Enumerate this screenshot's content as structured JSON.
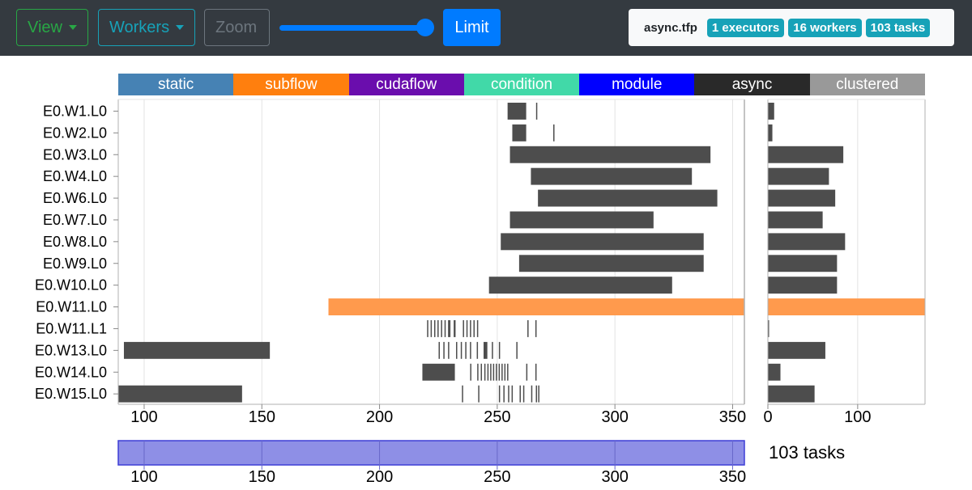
{
  "toolbar": {
    "view_label": "View",
    "workers_label": "Workers",
    "zoom_label": "Zoom",
    "limit_label": "Limit",
    "limit_slider_value": 1.0
  },
  "info": {
    "filename": "async.tfp",
    "badges": [
      "1 executors",
      "16 workers",
      "103 tasks"
    ]
  },
  "legend": [
    {
      "label": "static",
      "color": "#4682b4"
    },
    {
      "label": "subflow",
      "color": "#ff7f0e"
    },
    {
      "label": "cudaflow",
      "color": "#6a0dad"
    },
    {
      "label": "condition",
      "color": "#41d9a8"
    },
    {
      "label": "module",
      "color": "#0000ff"
    },
    {
      "label": "async",
      "color": "#292929"
    },
    {
      "label": "clustered",
      "color": "#999999"
    }
  ],
  "chart_data": [
    {
      "type": "timeline",
      "xlim": [
        89,
        355
      ],
      "xticks": [
        100,
        150,
        200,
        250,
        300,
        350
      ],
      "rows": [
        "E0.W1.L0",
        "E0.W2.L0",
        "E0.W3.L0",
        "E0.W4.L0",
        "E0.W6.L0",
        "E0.W7.L0",
        "E0.W8.L0",
        "E0.W9.L0",
        "E0.W10.L0",
        "E0.W11.L0",
        "E0.W11.L1",
        "E0.W13.L0",
        "E0.W14.L0",
        "E0.W15.L0"
      ],
      "segments": [
        {
          "row": 0,
          "start": 254.4,
          "end": 262.3,
          "type": "async"
        },
        {
          "row": 0,
          "start": 266.5,
          "end": 267.0,
          "type": "async"
        },
        {
          "row": 1,
          "start": 256.4,
          "end": 262.3,
          "type": "async"
        },
        {
          "row": 1,
          "start": 273.8,
          "end": 274.3,
          "type": "async"
        },
        {
          "row": 2,
          "start": 255.4,
          "end": 340.6,
          "type": "async"
        },
        {
          "row": 3,
          "start": 264.3,
          "end": 332.7,
          "type": "async"
        },
        {
          "row": 4,
          "start": 267.3,
          "end": 343.5,
          "type": "async"
        },
        {
          "row": 5,
          "start": 255.4,
          "end": 316.4,
          "type": "async"
        },
        {
          "row": 6,
          "start": 251.5,
          "end": 337.7,
          "type": "async"
        },
        {
          "row": 7,
          "start": 259.3,
          "end": 337.7,
          "type": "async"
        },
        {
          "row": 8,
          "start": 246.5,
          "end": 324.3,
          "type": "async"
        },
        {
          "row": 9,
          "start": 178.3,
          "end": 355.0,
          "type": "subflow"
        },
        {
          "row": 10,
          "start": 220.2,
          "end": 220.7,
          "type": "async"
        },
        {
          "row": 10,
          "start": 221.7,
          "end": 222.2,
          "type": "async"
        },
        {
          "row": 10,
          "start": 223.2,
          "end": 223.7,
          "type": "async"
        },
        {
          "row": 10,
          "start": 224.6,
          "end": 225.1,
          "type": "async"
        },
        {
          "row": 10,
          "start": 226.1,
          "end": 226.6,
          "type": "async"
        },
        {
          "row": 10,
          "start": 227.6,
          "end": 228.1,
          "type": "async"
        },
        {
          "row": 10,
          "start": 229.1,
          "end": 229.6,
          "type": "async"
        },
        {
          "row": 10,
          "start": 231.5,
          "end": 232.3,
          "type": "async"
        },
        {
          "row": 10,
          "start": 235.4,
          "end": 235.9,
          "type": "async"
        },
        {
          "row": 10,
          "start": 236.9,
          "end": 237.4,
          "type": "async"
        },
        {
          "row": 10,
          "start": 238.4,
          "end": 238.9,
          "type": "async"
        },
        {
          "row": 10,
          "start": 239.9,
          "end": 240.4,
          "type": "async"
        },
        {
          "row": 10,
          "start": 241.4,
          "end": 241.9,
          "type": "async"
        },
        {
          "row": 10,
          "start": 262.8,
          "end": 263.3,
          "type": "async"
        },
        {
          "row": 10,
          "start": 266.2,
          "end": 266.7,
          "type": "async"
        },
        {
          "row": 10,
          "start": 229.6,
          "end": 230.1,
          "type": "async"
        },
        {
          "row": 11,
          "start": 91.4,
          "end": 153.4,
          "type": "async"
        },
        {
          "row": 11,
          "start": 225.1,
          "end": 225.6,
          "type": "async"
        },
        {
          "row": 11,
          "start": 227.1,
          "end": 227.6,
          "type": "async"
        },
        {
          "row": 11,
          "start": 229.1,
          "end": 229.6,
          "type": "async"
        },
        {
          "row": 11,
          "start": 232.5,
          "end": 233.0,
          "type": "async"
        },
        {
          "row": 11,
          "start": 234.5,
          "end": 235.0,
          "type": "async"
        },
        {
          "row": 11,
          "start": 236.4,
          "end": 236.9,
          "type": "async"
        },
        {
          "row": 11,
          "start": 238.4,
          "end": 238.9,
          "type": "async"
        },
        {
          "row": 11,
          "start": 241.3,
          "end": 241.8,
          "type": "async"
        },
        {
          "row": 11,
          "start": 244.2,
          "end": 245.8,
          "type": "async"
        },
        {
          "row": 11,
          "start": 247.7,
          "end": 248.2,
          "type": "async"
        },
        {
          "row": 11,
          "start": 250.7,
          "end": 251.2,
          "type": "async"
        },
        {
          "row": 11,
          "start": 258.1,
          "end": 258.6,
          "type": "async"
        },
        {
          "row": 12,
          "start": 218.2,
          "end": 232.0,
          "type": "async"
        },
        {
          "row": 12,
          "start": 238.5,
          "end": 239.0,
          "type": "async"
        },
        {
          "row": 12,
          "start": 241.5,
          "end": 242.0,
          "type": "async"
        },
        {
          "row": 12,
          "start": 243.0,
          "end": 243.5,
          "type": "async"
        },
        {
          "row": 12,
          "start": 244.5,
          "end": 245.0,
          "type": "async"
        },
        {
          "row": 12,
          "start": 245.8,
          "end": 246.3,
          "type": "async"
        },
        {
          "row": 12,
          "start": 247.0,
          "end": 247.5,
          "type": "async"
        },
        {
          "row": 12,
          "start": 248.2,
          "end": 248.7,
          "type": "async"
        },
        {
          "row": 12,
          "start": 249.4,
          "end": 249.9,
          "type": "async"
        },
        {
          "row": 12,
          "start": 250.6,
          "end": 251.1,
          "type": "async"
        },
        {
          "row": 12,
          "start": 251.8,
          "end": 252.3,
          "type": "async"
        },
        {
          "row": 12,
          "start": 253.0,
          "end": 253.5,
          "type": "async"
        },
        {
          "row": 12,
          "start": 254.2,
          "end": 254.7,
          "type": "async"
        },
        {
          "row": 12,
          "start": 262.3,
          "end": 262.8,
          "type": "async"
        },
        {
          "row": 12,
          "start": 266.2,
          "end": 266.7,
          "type": "async"
        },
        {
          "row": 13,
          "start": 89.0,
          "end": 141.6,
          "type": "async"
        },
        {
          "row": 13,
          "start": 235.0,
          "end": 235.5,
          "type": "async"
        },
        {
          "row": 13,
          "start": 241.9,
          "end": 242.4,
          "type": "async"
        },
        {
          "row": 13,
          "start": 250.7,
          "end": 251.2,
          "type": "async"
        },
        {
          "row": 13,
          "start": 252.6,
          "end": 253.1,
          "type": "async"
        },
        {
          "row": 13,
          "start": 254.6,
          "end": 255.1,
          "type": "async"
        },
        {
          "row": 13,
          "start": 256.1,
          "end": 256.6,
          "type": "async"
        },
        {
          "row": 13,
          "start": 259.5,
          "end": 260.0,
          "type": "async"
        },
        {
          "row": 13,
          "start": 261.0,
          "end": 261.5,
          "type": "async"
        },
        {
          "row": 13,
          "start": 264.4,
          "end": 264.9,
          "type": "async"
        },
        {
          "row": 13,
          "start": 266.4,
          "end": 266.9,
          "type": "async"
        },
        {
          "row": 13,
          "start": 267.4,
          "end": 267.9,
          "type": "async"
        }
      ]
    },
    {
      "type": "bar",
      "orientation": "horizontal",
      "xlim": [
        0,
        175
      ],
      "xticks": [
        0,
        100
      ],
      "rows": [
        "E0.W1.L0",
        "E0.W2.L0",
        "E0.W3.L0",
        "E0.W4.L0",
        "E0.W6.L0",
        "E0.W7.L0",
        "E0.W8.L0",
        "E0.W9.L0",
        "E0.W10.L0",
        "E0.W11.L0",
        "E0.W11.L1",
        "E0.W13.L0",
        "E0.W14.L0",
        "E0.W15.L0"
      ],
      "values": [
        7,
        5,
        84,
        68,
        75,
        61,
        86,
        77,
        77,
        176,
        1,
        64,
        14,
        52
      ],
      "types": [
        "async",
        "async",
        "async",
        "async",
        "async",
        "async",
        "async",
        "async",
        "async",
        "subflow",
        "async",
        "async",
        "async",
        "async"
      ]
    },
    {
      "type": "brush",
      "xlim": [
        89,
        355
      ],
      "xticks": [
        100,
        150,
        200,
        250,
        300,
        350
      ],
      "selection": [
        89,
        355
      ],
      "label": "103 tasks"
    }
  ]
}
